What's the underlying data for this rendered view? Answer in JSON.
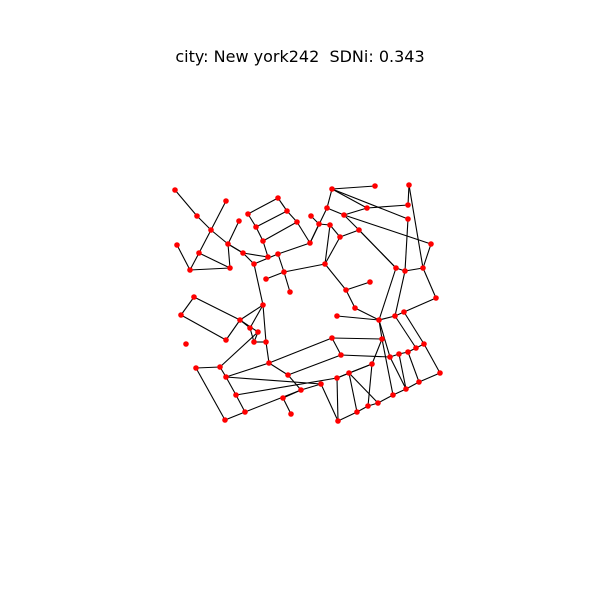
{
  "figure": {
    "title": "city: New york242  SDNi: 0.343"
  },
  "graph": {
    "node_color": "#ff0000",
    "edge_color": "#000000"
  }
}
